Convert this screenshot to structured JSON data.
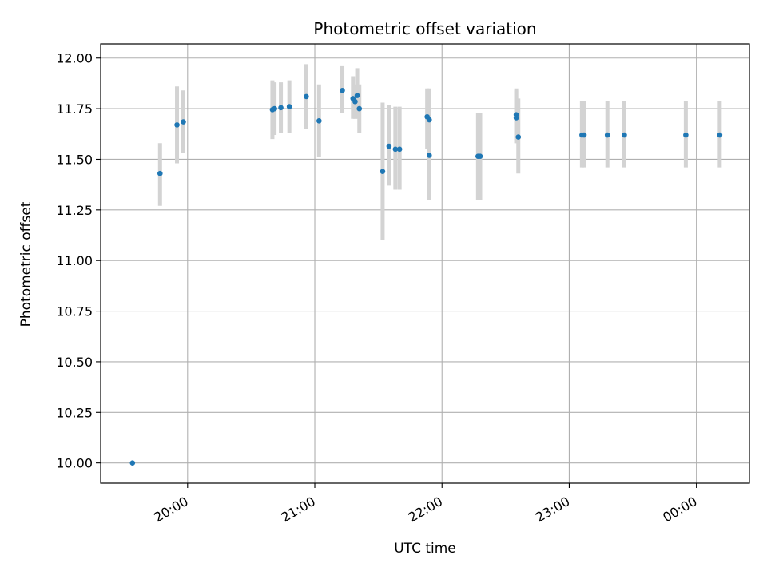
{
  "chart_data": {
    "type": "scatter",
    "title": "Photometric offset variation",
    "xlabel": "UTC time",
    "ylabel": "Photometric offset",
    "x_axis": {
      "kind": "time",
      "start": "19:19",
      "end": "00:25",
      "ticks": [
        "20:00",
        "21:00",
        "22:00",
        "23:00",
        "00:00"
      ]
    },
    "ylim": [
      9.9,
      12.07
    ],
    "yticks": [
      "10.00",
      "10.25",
      "10.50",
      "10.75",
      "11.00",
      "11.25",
      "11.50",
      "11.75",
      "12.00"
    ],
    "grid": true,
    "colors": {
      "marker": "#1f77b4",
      "errorbar": "#d3d3d3",
      "grid": "#b0b0b0"
    },
    "points": [
      {
        "t": "19:34",
        "y": 10.0,
        "lo": 10.0,
        "hi": 10.0
      },
      {
        "t": "19:47",
        "y": 11.43,
        "lo": 11.27,
        "hi": 11.58
      },
      {
        "t": "19:55",
        "y": 11.67,
        "lo": 11.48,
        "hi": 11.86
      },
      {
        "t": "19:58",
        "y": 11.685,
        "lo": 11.53,
        "hi": 11.84
      },
      {
        "t": "20:40",
        "y": 11.745,
        "lo": 11.6,
        "hi": 11.89
      },
      {
        "t": "20:41",
        "y": 11.75,
        "lo": 11.62,
        "hi": 11.88
      },
      {
        "t": "20:44",
        "y": 11.755,
        "lo": 11.63,
        "hi": 11.88
      },
      {
        "t": "20:48",
        "y": 11.76,
        "lo": 11.63,
        "hi": 11.89
      },
      {
        "t": "20:56",
        "y": 11.81,
        "lo": 11.65,
        "hi": 11.97
      },
      {
        "t": "21:02",
        "y": 11.69,
        "lo": 11.51,
        "hi": 11.87
      },
      {
        "t": "21:13",
        "y": 11.84,
        "lo": 11.73,
        "hi": 11.96
      },
      {
        "t": "21:18",
        "y": 11.8,
        "lo": 11.7,
        "hi": 11.91
      },
      {
        "t": "21:19",
        "y": 11.785,
        "lo": 11.7,
        "hi": 11.87
      },
      {
        "t": "21:20",
        "y": 11.815,
        "lo": 11.7,
        "hi": 11.95
      },
      {
        "t": "21:21",
        "y": 11.75,
        "lo": 11.63,
        "hi": 11.87
      },
      {
        "t": "21:32",
        "y": 11.44,
        "lo": 11.1,
        "hi": 11.78
      },
      {
        "t": "21:35",
        "y": 11.565,
        "lo": 11.37,
        "hi": 11.77
      },
      {
        "t": "21:38",
        "y": 11.55,
        "lo": 11.35,
        "hi": 11.76
      },
      {
        "t": "21:40",
        "y": 11.55,
        "lo": 11.35,
        "hi": 11.76
      },
      {
        "t": "21:53",
        "y": 11.71,
        "lo": 11.55,
        "hi": 11.85
      },
      {
        "t": "21:54",
        "y": 11.695,
        "lo": 11.5,
        "hi": 11.85
      },
      {
        "t": "21:54",
        "y": 11.52,
        "lo": 11.3,
        "hi": 11.74
      },
      {
        "t": "22:17",
        "y": 11.515,
        "lo": 11.3,
        "hi": 11.73
      },
      {
        "t": "22:18",
        "y": 11.515,
        "lo": 11.3,
        "hi": 11.73
      },
      {
        "t": "22:35",
        "y": 11.72,
        "lo": 11.58,
        "hi": 11.85
      },
      {
        "t": "22:35",
        "y": 11.705,
        "lo": 11.58,
        "hi": 11.84
      },
      {
        "t": "22:36",
        "y": 11.61,
        "lo": 11.43,
        "hi": 11.8
      },
      {
        "t": "23:06",
        "y": 11.62,
        "lo": 11.46,
        "hi": 11.79
      },
      {
        "t": "23:07",
        "y": 11.62,
        "lo": 11.46,
        "hi": 11.79
      },
      {
        "t": "23:18",
        "y": 11.62,
        "lo": 11.46,
        "hi": 11.79
      },
      {
        "t": "23:26",
        "y": 11.62,
        "lo": 11.46,
        "hi": 11.79
      },
      {
        "t": "23:55",
        "y": 11.62,
        "lo": 11.46,
        "hi": 11.79
      },
      {
        "t": "00:11",
        "y": 11.62,
        "lo": 11.46,
        "hi": 11.79
      }
    ]
  }
}
